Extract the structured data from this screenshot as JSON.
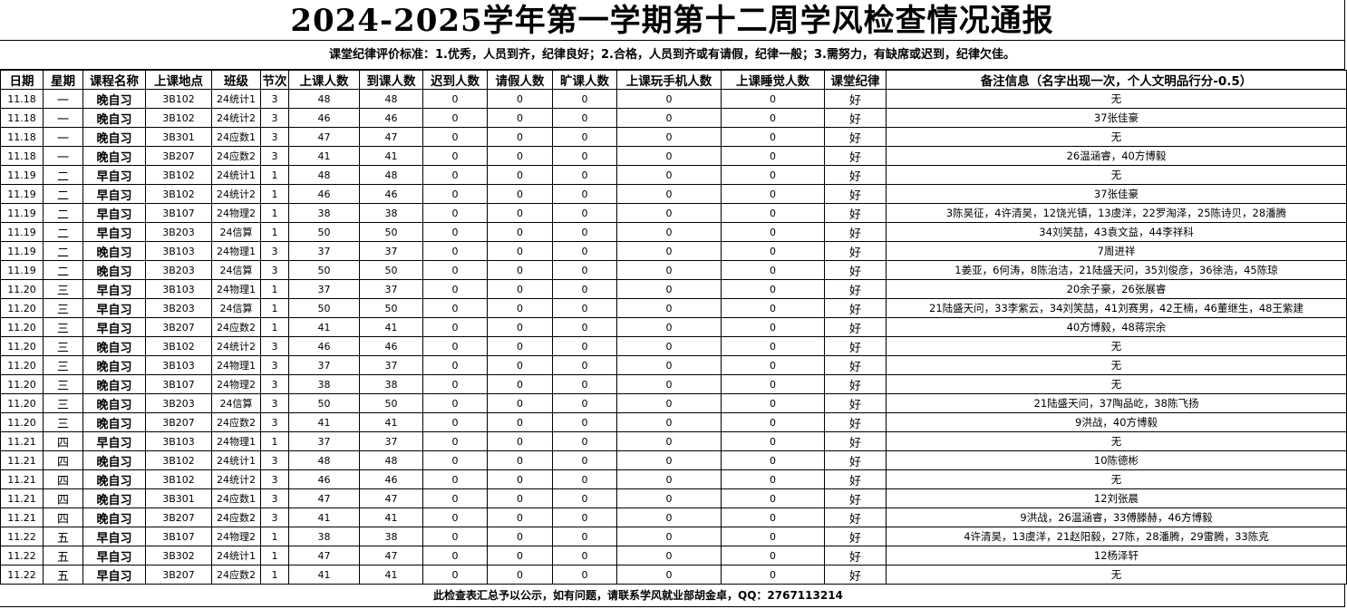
{
  "title": "2024-2025学年第一学期第十二周学风检查情况通报",
  "criteria": "课堂纪律评价标准：1.优秀，人员到齐，纪律良好；2.合格，人员到齐或有请假，纪律一般；3.需努力，有缺席或迟到，纪律欠佳。",
  "columns": [
    "日期",
    "星期",
    "课程名称",
    "上课地点",
    "班级",
    "节次",
    "上课人数",
    "到课人数",
    "迟到人数",
    "请假人数",
    "旷课人数",
    "上课玩手机人数",
    "上课睡觉人数",
    "课堂纪律",
    "备注信息（名字出现一次，个人文明品行分-0.5）"
  ],
  "rows": [
    [
      "11.18",
      "一",
      "晚自习",
      "3B102",
      "24统计1",
      "3",
      "48",
      "48",
      "0",
      "0",
      "0",
      "0",
      "0",
      "好",
      "无"
    ],
    [
      "11.18",
      "一",
      "晚自习",
      "3B102",
      "24统计2",
      "3",
      "46",
      "46",
      "0",
      "0",
      "0",
      "0",
      "0",
      "好",
      "37张佳豪"
    ],
    [
      "11.18",
      "一",
      "晚自习",
      "3B301",
      "24应数1",
      "3",
      "47",
      "47",
      "0",
      "0",
      "0",
      "0",
      "0",
      "好",
      "无"
    ],
    [
      "11.18",
      "一",
      "晚自习",
      "3B207",
      "24应数2",
      "3",
      "41",
      "41",
      "0",
      "0",
      "0",
      "0",
      "0",
      "好",
      "26温涵睿，40方博毅"
    ],
    [
      "11.19",
      "二",
      "早自习",
      "3B102",
      "24统计1",
      "1",
      "48",
      "48",
      "0",
      "0",
      "0",
      "0",
      "0",
      "好",
      "无"
    ],
    [
      "11.19",
      "二",
      "早自习",
      "3B102",
      "24统计2",
      "1",
      "46",
      "46",
      "0",
      "0",
      "0",
      "0",
      "0",
      "好",
      "37张佳豪"
    ],
    [
      "11.19",
      "二",
      "早自习",
      "3B107",
      "24物理2",
      "1",
      "38",
      "38",
      "0",
      "0",
      "0",
      "0",
      "0",
      "好",
      "3陈昊征，4许清昊，12饶光镇，13虞洋，22罗淘泽，25陈诗贝，28潘腾"
    ],
    [
      "11.19",
      "二",
      "早自习",
      "3B203",
      "24信算",
      "1",
      "50",
      "50",
      "0",
      "0",
      "0",
      "0",
      "0",
      "好",
      "34刘笑喆，43袁文益，44李祥科"
    ],
    [
      "11.19",
      "二",
      "晚自习",
      "3B103",
      "24物理1",
      "3",
      "37",
      "37",
      "0",
      "0",
      "0",
      "0",
      "0",
      "好",
      "7周进祥"
    ],
    [
      "11.19",
      "二",
      "晚自习",
      "3B203",
      "24信算",
      "3",
      "50",
      "50",
      "0",
      "0",
      "0",
      "0",
      "0",
      "好",
      "1姜亚，6何涛，8陈治洁，21陆盛天问，35刘俊彦，36徐浩，45陈琼"
    ],
    [
      "11.20",
      "三",
      "早自习",
      "3B103",
      "24物理1",
      "1",
      "37",
      "37",
      "0",
      "0",
      "0",
      "0",
      "0",
      "好",
      "20余子豪，26张展睿"
    ],
    [
      "11.20",
      "三",
      "早自习",
      "3B203",
      "24信算",
      "1",
      "50",
      "50",
      "0",
      "0",
      "0",
      "0",
      "0",
      "好",
      "21陆盛天问，33李紫云，34刘笑喆，41刘赛男，42王楠，46董继生，48王紫建"
    ],
    [
      "11.20",
      "三",
      "早自习",
      "3B207",
      "24应数2",
      "1",
      "41",
      "41",
      "0",
      "0",
      "0",
      "0",
      "0",
      "好",
      "40方博毅，48蒋宗余"
    ],
    [
      "11.20",
      "三",
      "晚自习",
      "3B102",
      "24统计2",
      "3",
      "46",
      "46",
      "0",
      "0",
      "0",
      "0",
      "0",
      "好",
      "无"
    ],
    [
      "11.20",
      "三",
      "晚自习",
      "3B103",
      "24物理1",
      "3",
      "37",
      "37",
      "0",
      "0",
      "0",
      "0",
      "0",
      "好",
      "无"
    ],
    [
      "11.20",
      "三",
      "晚自习",
      "3B107",
      "24物理2",
      "3",
      "38",
      "38",
      "0",
      "0",
      "0",
      "0",
      "0",
      "好",
      "无"
    ],
    [
      "11.20",
      "三",
      "晚自习",
      "3B203",
      "24信算",
      "3",
      "50",
      "50",
      "0",
      "0",
      "0",
      "0",
      "0",
      "好",
      "21陆盛天问，37陶品屹，38陈飞扬"
    ],
    [
      "11.20",
      "三",
      "晚自习",
      "3B207",
      "24应数2",
      "3",
      "41",
      "41",
      "0",
      "0",
      "0",
      "0",
      "0",
      "好",
      "9洪战，40方博毅"
    ],
    [
      "11.21",
      "四",
      "早自习",
      "3B103",
      "24物理1",
      "1",
      "37",
      "37",
      "0",
      "0",
      "0",
      "0",
      "0",
      "好",
      "无"
    ],
    [
      "11.21",
      "四",
      "晚自习",
      "3B102",
      "24统计1",
      "3",
      "48",
      "48",
      "0",
      "0",
      "0",
      "0",
      "0",
      "好",
      "10陈德彬"
    ],
    [
      "11.21",
      "四",
      "晚自习",
      "3B102",
      "24统计2",
      "3",
      "46",
      "46",
      "0",
      "0",
      "0",
      "0",
      "0",
      "好",
      "无"
    ],
    [
      "11.21",
      "四",
      "晚自习",
      "3B301",
      "24应数1",
      "3",
      "47",
      "47",
      "0",
      "0",
      "0",
      "0",
      "0",
      "好",
      "12刘张晨"
    ],
    [
      "11.21",
      "四",
      "晚自习",
      "3B207",
      "24应数2",
      "3",
      "41",
      "41",
      "0",
      "0",
      "0",
      "0",
      "0",
      "好",
      "9洪战，26温涵睿，33傅滕赫，46方博毅"
    ],
    [
      "11.22",
      "五",
      "早自习",
      "3B107",
      "24物理2",
      "1",
      "38",
      "38",
      "0",
      "0",
      "0",
      "0",
      "0",
      "好",
      "4许清昊，13虞洋，21赵阳毅，27陈，28潘腾，29雷腾，33陈克"
    ],
    [
      "11.22",
      "五",
      "早自习",
      "3B302",
      "24统计1",
      "1",
      "47",
      "47",
      "0",
      "0",
      "0",
      "0",
      "0",
      "好",
      "12杨泽轩"
    ],
    [
      "11.22",
      "五",
      "早自习",
      "3B207",
      "24应数2",
      "1",
      "41",
      "41",
      "0",
      "0",
      "0",
      "0",
      "0",
      "好",
      "无"
    ]
  ],
  "footer": "此检查表汇总予以公示，如有问题，请联系学风就业部胡金卓，QQ：2767113214"
}
